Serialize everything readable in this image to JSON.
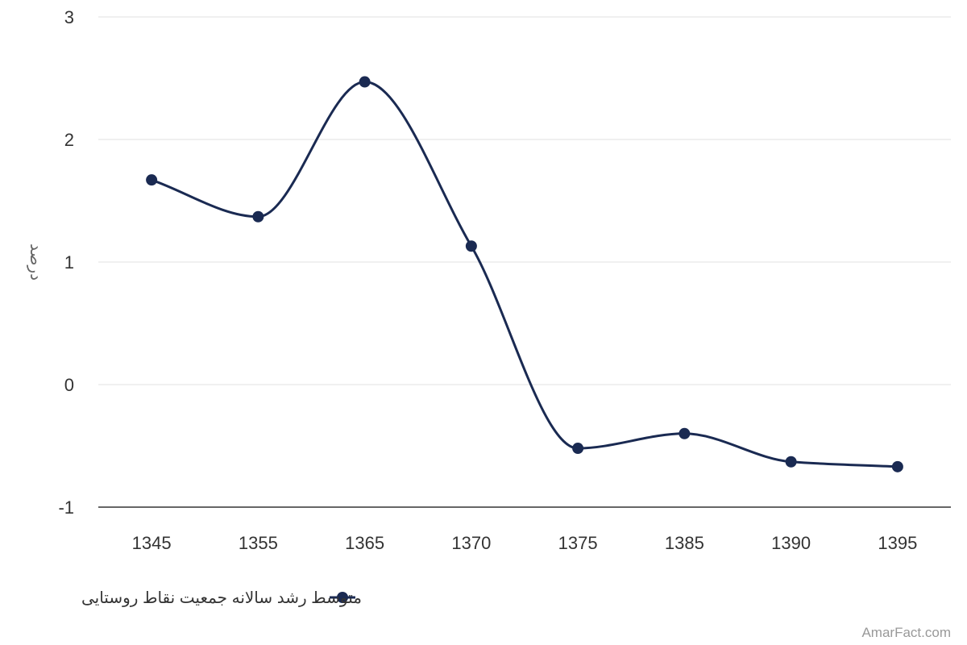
{
  "chart_data": {
    "type": "line",
    "categories": [
      "1345",
      "1355",
      "1365",
      "1370",
      "1375",
      "1385",
      "1390",
      "1395"
    ],
    "series": [
      {
        "name": "متوسط رشد سالانه جمعیت نقاط روستایی",
        "values": [
          1.67,
          1.37,
          2.47,
          1.13,
          -0.52,
          -0.4,
          -0.63,
          -0.67
        ],
        "color": "#1a2a52"
      }
    ],
    "y_ticks": [
      3,
      2,
      1,
      0,
      -1
    ],
    "ylim": [
      -1,
      3
    ],
    "ylabel": "درصد",
    "grid": true,
    "legend_position": "bottom-center",
    "smooth": true
  },
  "credit": "AmarFact.com"
}
